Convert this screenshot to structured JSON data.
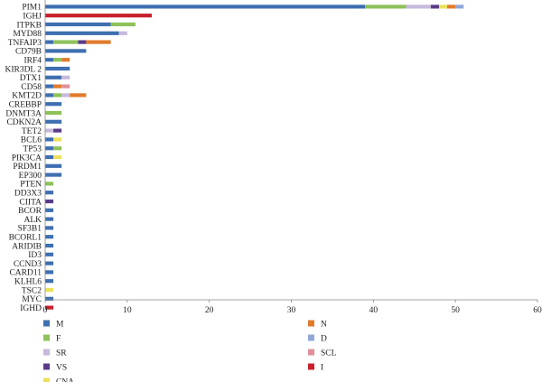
{
  "chart_data": {
    "type": "bar",
    "orientation": "horizontal",
    "stacked": true,
    "title": "",
    "xlabel": "",
    "ylabel": "",
    "xlim": [
      0,
      60
    ],
    "xticks": [
      0,
      10,
      20,
      30,
      40,
      50,
      60
    ],
    "grid": false,
    "legend_position": "bottom",
    "categories": [
      "PIM1",
      "IGHJ",
      "ITPKB",
      "MYD88",
      "TNFAIP3",
      "CD79B",
      "IRF4",
      "KIR3DL 2",
      "DTX1",
      "CD58",
      "KMT2D",
      "CREBBP",
      "DNMT3A",
      "CDKN2A",
      "TET2",
      "BCL6",
      "TP53",
      "PIK3CA",
      "PRDM1",
      "EP300",
      "PTEN",
      "DD3X3",
      "CIITA",
      "BCOR",
      "ALK",
      "SF3B1",
      "BCORL1",
      "ARIDIB",
      "ID3",
      "CCND3",
      "CARD11",
      "KLHL6",
      "TSC2",
      "MYC",
      "IGHD"
    ],
    "series": [
      {
        "name": "M",
        "color": "#3e6fb0",
        "values": [
          39,
          0,
          8,
          9,
          1,
          5,
          1,
          3,
          2,
          1,
          1,
          2,
          0,
          2,
          0,
          1,
          1,
          1,
          2,
          2,
          0,
          1,
          0,
          1,
          1,
          1,
          1,
          1,
          1,
          1,
          1,
          1,
          0,
          1,
          0
        ]
      },
      {
        "name": "F",
        "color": "#8dc25a",
        "values": [
          5,
          0,
          3,
          0,
          3,
          0,
          1,
          0,
          0,
          0,
          1,
          0,
          2,
          0,
          0,
          0,
          1,
          0,
          0,
          0,
          1,
          0,
          0,
          0,
          0,
          0,
          0,
          0,
          0,
          0,
          0,
          0,
          0,
          0,
          0
        ]
      },
      {
        "name": "SR",
        "color": "#c7b8dc",
        "values": [
          3,
          0,
          0,
          1,
          0,
          0,
          0,
          0,
          1,
          0,
          1,
          0,
          0,
          0,
          1,
          0,
          0,
          0,
          0,
          0,
          0,
          0,
          0,
          0,
          0,
          0,
          0,
          0,
          0,
          0,
          0,
          0,
          0,
          0,
          0
        ]
      },
      {
        "name": "VS",
        "color": "#5b3b88",
        "values": [
          1,
          0,
          0,
          0,
          1,
          0,
          0,
          0,
          0,
          0,
          0,
          0,
          0,
          0,
          1,
          0,
          0,
          0,
          0,
          0,
          0,
          0,
          1,
          0,
          0,
          0,
          0,
          0,
          0,
          0,
          0,
          0,
          0,
          0,
          0
        ]
      },
      {
        "name": "CNA",
        "color": "#ece15a",
        "values": [
          1,
          0,
          0,
          0,
          0,
          0,
          0,
          0,
          0,
          0,
          0,
          0,
          0,
          0,
          0,
          1,
          0,
          1,
          0,
          0,
          0,
          0,
          0,
          0,
          0,
          0,
          0,
          0,
          0,
          0,
          0,
          0,
          1,
          0,
          0
        ]
      },
      {
        "name": "N",
        "color": "#e07b2c",
        "values": [
          1,
          0,
          0,
          0,
          3,
          0,
          1,
          0,
          0,
          1,
          2,
          0,
          0,
          0,
          0,
          0,
          0,
          0,
          0,
          0,
          0,
          0,
          0,
          0,
          0,
          0,
          0,
          0,
          0,
          0,
          0,
          0,
          0,
          0,
          0
        ]
      },
      {
        "name": "D",
        "color": "#8fa8d6",
        "values": [
          1,
          0,
          0,
          0,
          0,
          0,
          0,
          0,
          0,
          0,
          0,
          0,
          0,
          0,
          0,
          0,
          0,
          0,
          0,
          0,
          0,
          0,
          0,
          0,
          0,
          0,
          0,
          0,
          0,
          0,
          0,
          0,
          0,
          0,
          0
        ]
      },
      {
        "name": "SCL",
        "color": "#e0909a",
        "values": [
          0,
          0,
          0,
          0,
          0,
          0,
          0,
          0,
          0,
          1,
          0,
          0,
          0,
          0,
          0,
          0,
          0,
          0,
          0,
          0,
          0,
          0,
          0,
          0,
          0,
          0,
          0,
          0,
          0,
          0,
          0,
          0,
          0,
          0,
          0
        ]
      },
      {
        "name": "I",
        "color": "#c8212b",
        "values": [
          0,
          13,
          0,
          0,
          0,
          0,
          0,
          0,
          0,
          0,
          0,
          0,
          0,
          0,
          0,
          0,
          0,
          0,
          0,
          0,
          0,
          0,
          0,
          0,
          0,
          0,
          0,
          0,
          0,
          0,
          0,
          0,
          0,
          0,
          1
        ]
      }
    ]
  }
}
